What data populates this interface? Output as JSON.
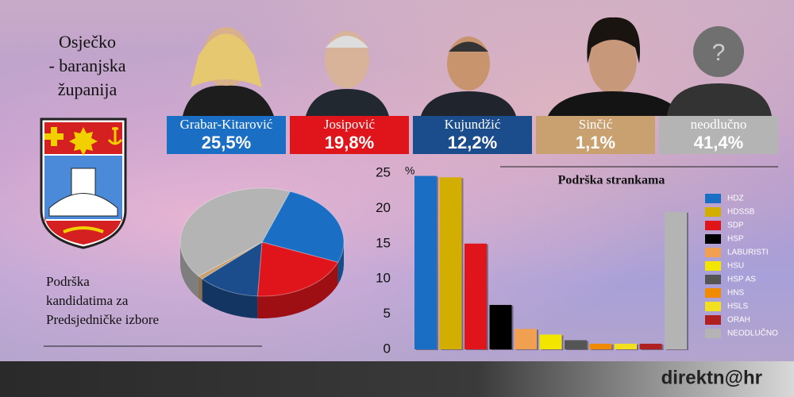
{
  "header": {
    "title_lines": [
      "Osječko",
      "- baranjska",
      "županija"
    ]
  },
  "chart_data": [
    {
      "type": "pie",
      "title_lines": [
        "Podrška",
        "kandidatima za",
        "Predsjedničke izbore"
      ],
      "categories": [
        "Grabar-Kitarović",
        "Josipović",
        "Kujundžić",
        "Sinčić",
        "neodlučno"
      ],
      "values": [
        25.5,
        19.8,
        12.2,
        1.1,
        41.4
      ],
      "value_labels": [
        "25,5%",
        "19,8%",
        "12,2%",
        "1,1%",
        "41,4%"
      ],
      "colors": [
        "#1a6fc4",
        "#e0151b",
        "#1b4c8c",
        "#c9a070",
        "#b4b4b4"
      ]
    },
    {
      "type": "bar",
      "title": "Podrška strankama",
      "y_label": "%",
      "categories": [
        "HDZ",
        "HDSSB",
        "SDP",
        "HSP",
        "LABURISTI",
        "HSU",
        "HSP AS",
        "HNS",
        "HSLS",
        "ORAH",
        "NEODLUČNO"
      ],
      "values": [
        24.6,
        24.4,
        15,
        6.3,
        2.9,
        2.1,
        1.3,
        0.8,
        0.8,
        0.8,
        19.5
      ],
      "colors": [
        "#1a6fc4",
        "#d2ae00",
        "#e0151b",
        "#000000",
        "#f0a050",
        "#f2e600",
        "#555555",
        "#f08a00",
        "#f2e020",
        "#b02020",
        "#b4b4b4"
      ],
      "ylim": [
        0,
        25
      ],
      "yticks": [
        0,
        5,
        10,
        15,
        20,
        25
      ]
    }
  ],
  "footer": {
    "logo": "direktn@hr"
  }
}
